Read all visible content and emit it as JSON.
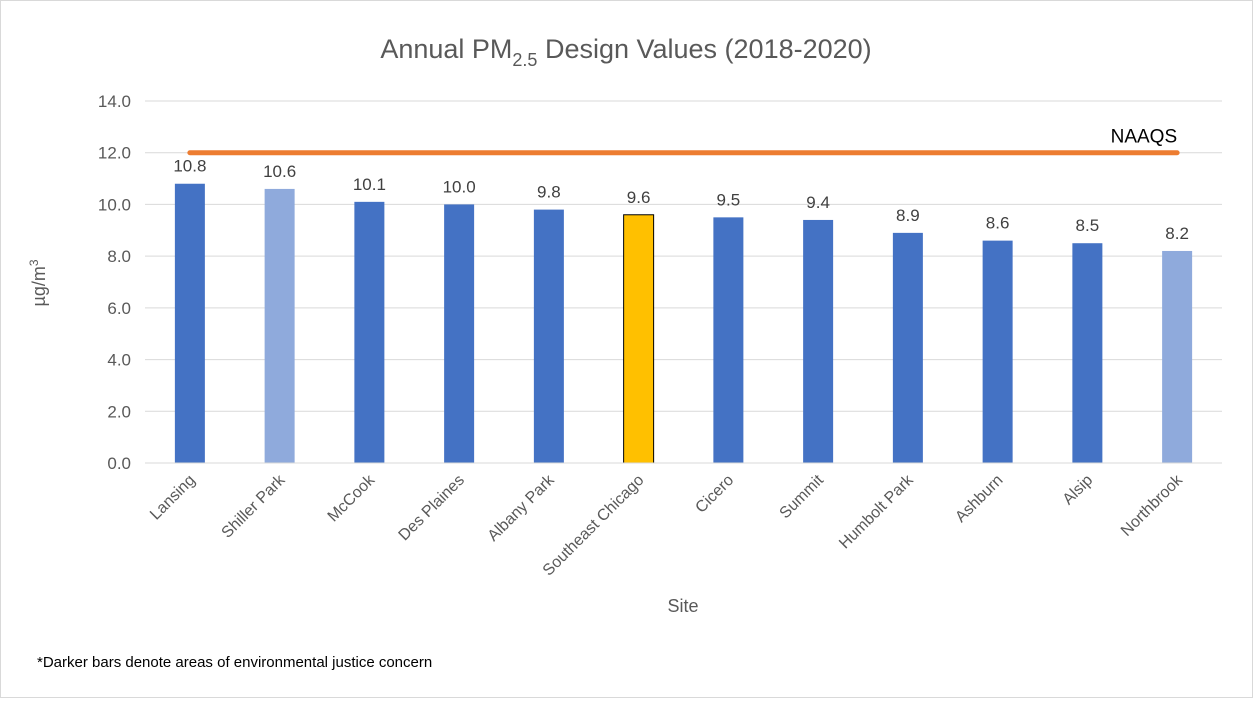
{
  "chart_data": {
    "type": "bar",
    "title": {
      "text": "Annual PM",
      "subscript": "2.5",
      "rest": " Design Values (2018-2020)"
    },
    "x_label": "Site",
    "y_label": {
      "text": "µg/m",
      "superscript": "3"
    },
    "categories": [
      "Lansing",
      "Shiller Park",
      "McCook",
      "Des Plaines",
      "Albany Park",
      "Southeast Chicago",
      "Cicero",
      "Summit",
      "Humbolt Park",
      "Ashburn",
      "Alsip",
      "Northbrook"
    ],
    "values": [
      10.8,
      10.6,
      10.1,
      10.0,
      9.8,
      9.6,
      9.5,
      9.4,
      8.9,
      8.6,
      8.5,
      8.2
    ],
    "value_labels": [
      "10.8",
      "10.6",
      "10.1",
      "10.0",
      "9.8",
      "9.6",
      "9.5",
      "9.4",
      "8.9",
      "8.6",
      "8.5",
      "8.2"
    ],
    "colors": [
      "#4472c4",
      "#8faadc",
      "#4472c4",
      "#4472c4",
      "#4472c4",
      "#ffc000",
      "#4472c4",
      "#4472c4",
      "#4472c4",
      "#4472c4",
      "#4472c4",
      "#8faadc"
    ],
    "reference_line": {
      "name": "NAAQS",
      "value": 12,
      "color": "#ed7d31"
    },
    "ylim": [
      0,
      14
    ],
    "yticks": [
      {
        "value": 0,
        "label": "0.0"
      },
      {
        "value": 2,
        "label": "2.0"
      },
      {
        "value": 4,
        "label": "4.0"
      },
      {
        "value": 6,
        "label": "6.0"
      },
      {
        "value": 8,
        "label": "8.0"
      },
      {
        "value": 10,
        "label": "10.0"
      },
      {
        "value": 12,
        "label": "12.0"
      },
      {
        "value": 14,
        "label": "14.0"
      }
    ],
    "grid": true,
    "footnote": "*Darker bars denote areas of environmental justice concern"
  }
}
